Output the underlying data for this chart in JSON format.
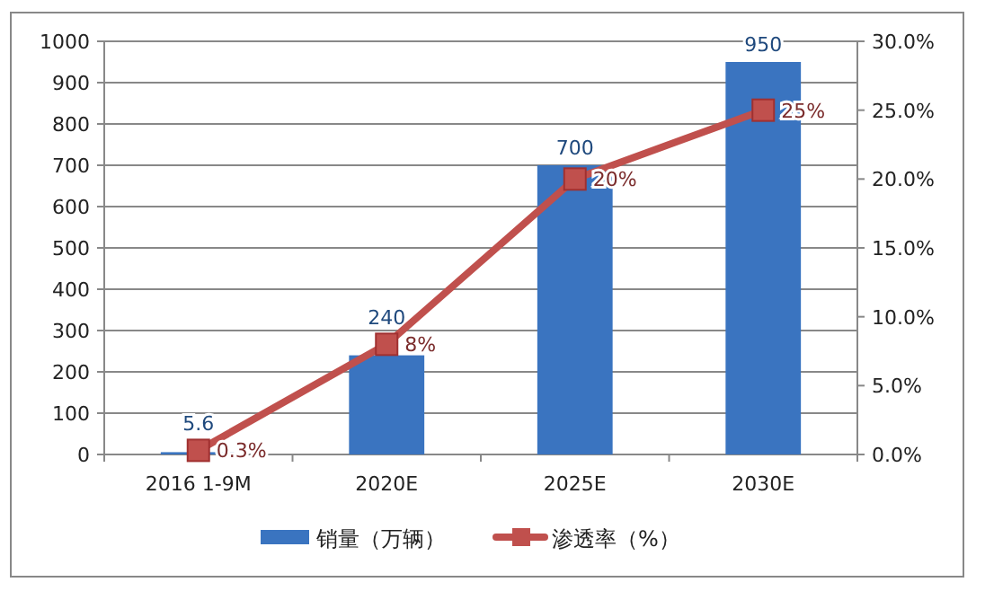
{
  "chart_data": {
    "type": "bar",
    "categories": [
      "2016 1-9M",
      "2020E",
      "2025E",
      "2030E"
    ],
    "series": [
      {
        "name": "销量（万辆）",
        "color": "#3a74c0",
        "values": [
          5.6,
          240,
          700,
          950
        ],
        "data_labels": true
      },
      {
        "name": "渗透率（%）",
        "type": "line",
        "axis": "y2",
        "color": "#c0504d",
        "marker": "square",
        "values": [
          0.3,
          8,
          20,
          25
        ],
        "value_labels": [
          "0.3%",
          "8%",
          "20%",
          "25%"
        ]
      }
    ],
    "ylim": [
      0,
      1000
    ],
    "yticks": [
      0,
      100,
      200,
      300,
      400,
      500,
      600,
      700,
      800,
      900,
      1000
    ],
    "y2lim": [
      0,
      30
    ],
    "y2ticks": [
      {
        "value": 0,
        "label": "0.0%"
      },
      {
        "value": 5,
        "label": "5.0%"
      },
      {
        "value": 10,
        "label": "10.0%"
      },
      {
        "value": 15,
        "label": "15.0%"
      },
      {
        "value": 20,
        "label": "20.0%"
      },
      {
        "value": 25,
        "label": "25.0%"
      },
      {
        "value": 30,
        "label": "30.0%"
      }
    ],
    "grid": "y",
    "legend": "bottom"
  }
}
